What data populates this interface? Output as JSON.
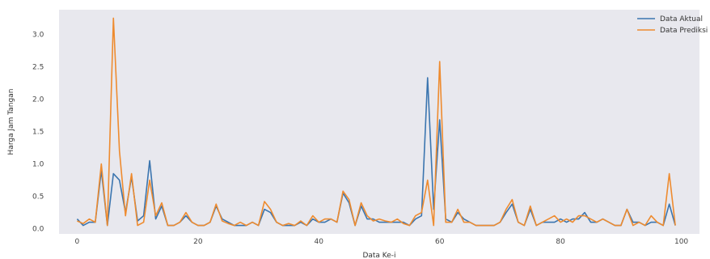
{
  "chart_data": {
    "type": "line",
    "title": "",
    "xlabel": "Data Ke-i",
    "ylabel": "Harga Jam Tangan",
    "xlim": [
      -3,
      103
    ],
    "ylim": [
      -0.08,
      3.38
    ],
    "x_ticks": [
      0,
      20,
      40,
      60,
      80,
      100
    ],
    "y_ticks": [
      0.0,
      0.5,
      1.0,
      1.5,
      2.0,
      2.5,
      3.0
    ],
    "x_tick_labels": [
      "0",
      "20",
      "40",
      "60",
      "80",
      "100"
    ],
    "y_tick_labels": [
      "0.0",
      "0.5",
      "1.0",
      "1.5",
      "2.0",
      "2.5",
      "3.0"
    ],
    "grid": false,
    "background": "#e8e8ee",
    "legend_position": "top-right",
    "series": [
      {
        "name": "Data Aktual",
        "color": "#3b75af",
        "values": [
          0.15,
          0.05,
          0.1,
          0.1,
          0.9,
          0.05,
          0.85,
          0.75,
          0.25,
          0.8,
          0.12,
          0.2,
          1.05,
          0.15,
          0.35,
          0.05,
          0.05,
          0.1,
          0.2,
          0.1,
          0.05,
          0.05,
          0.1,
          0.35,
          0.15,
          0.1,
          0.05,
          0.05,
          0.05,
          0.1,
          0.05,
          0.3,
          0.25,
          0.1,
          0.05,
          0.05,
          0.05,
          0.1,
          0.05,
          0.15,
          0.1,
          0.1,
          0.15,
          0.1,
          0.55,
          0.4,
          0.05,
          0.35,
          0.15,
          0.15,
          0.1,
          0.1,
          0.1,
          0.1,
          0.1,
          0.05,
          0.15,
          0.2,
          2.33,
          0.3,
          1.68,
          0.15,
          0.1,
          0.25,
          0.15,
          0.1,
          0.05,
          0.05,
          0.05,
          0.05,
          0.1,
          0.25,
          0.38,
          0.1,
          0.05,
          0.3,
          0.05,
          0.1,
          0.1,
          0.1,
          0.15,
          0.1,
          0.15,
          0.15,
          0.25,
          0.1,
          0.1,
          0.15,
          0.1,
          0.05,
          0.05,
          0.3,
          0.1,
          0.1,
          0.05,
          0.1,
          0.1,
          0.05,
          0.38,
          0.05
        ]
      },
      {
        "name": "Data Prediksi",
        "color": "#ee8b2f",
        "values": [
          0.12,
          0.08,
          0.15,
          0.1,
          1.0,
          0.05,
          3.25,
          1.2,
          0.2,
          0.85,
          0.05,
          0.1,
          0.75,
          0.2,
          0.4,
          0.05,
          0.05,
          0.1,
          0.25,
          0.1,
          0.05,
          0.05,
          0.1,
          0.38,
          0.12,
          0.08,
          0.05,
          0.1,
          0.05,
          0.1,
          0.05,
          0.42,
          0.3,
          0.1,
          0.05,
          0.08,
          0.05,
          0.12,
          0.05,
          0.2,
          0.1,
          0.15,
          0.15,
          0.1,
          0.58,
          0.45,
          0.05,
          0.4,
          0.2,
          0.12,
          0.15,
          0.12,
          0.1,
          0.15,
          0.08,
          0.05,
          0.2,
          0.25,
          0.75,
          0.05,
          2.58,
          0.1,
          0.1,
          0.3,
          0.1,
          0.1,
          0.05,
          0.05,
          0.05,
          0.05,
          0.1,
          0.3,
          0.45,
          0.1,
          0.05,
          0.35,
          0.05,
          0.1,
          0.15,
          0.2,
          0.1,
          0.15,
          0.1,
          0.2,
          0.2,
          0.15,
          0.1,
          0.15,
          0.1,
          0.05,
          0.05,
          0.3,
          0.05,
          0.1,
          0.05,
          0.2,
          0.1,
          0.05,
          0.85,
          0.05
        ]
      }
    ]
  }
}
